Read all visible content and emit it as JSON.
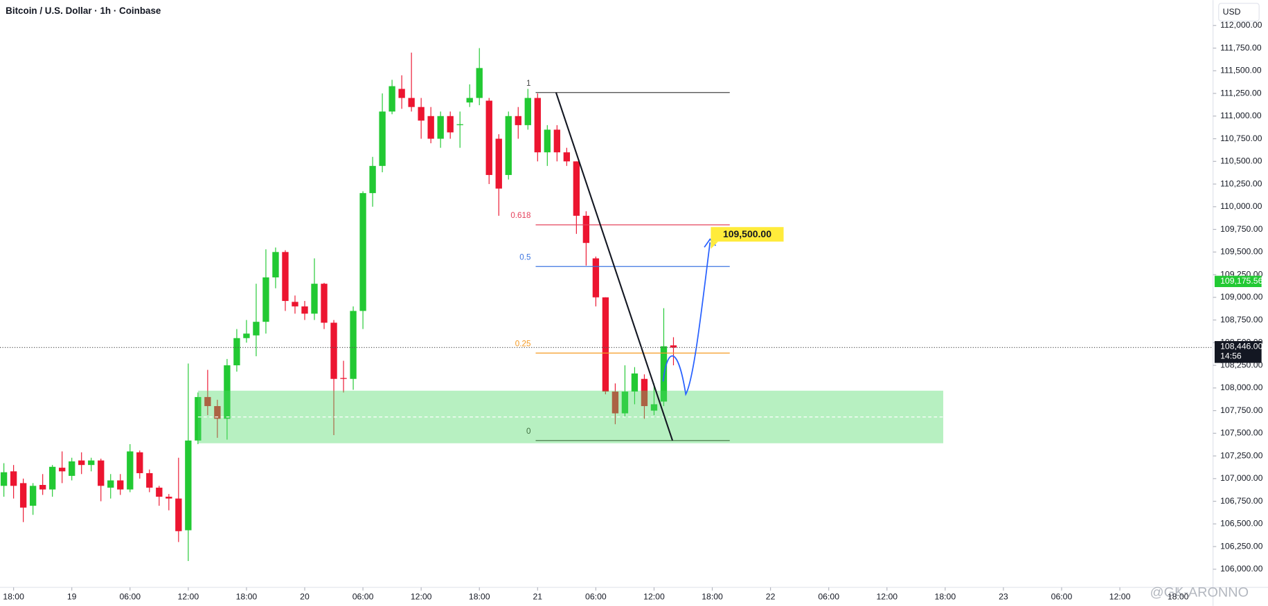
{
  "chart_data": {
    "type": "candlestick",
    "title": "Bitcoin / U.S. Dollar · 1h · Coinbase",
    "currency": "USD",
    "watermark": "@GK-ARONNO",
    "up_color": "#22c933",
    "down_color": "#ec1530",
    "x": [
      -1,
      0,
      1,
      2,
      3,
      4,
      5,
      6,
      7,
      8,
      9,
      10,
      11,
      12,
      13,
      14,
      15,
      16,
      17,
      18,
      19,
      20,
      21,
      22,
      23,
      24,
      25,
      26,
      27,
      28,
      29,
      30,
      31,
      32,
      33,
      34,
      35,
      36,
      37,
      38,
      39,
      40,
      41,
      42,
      43,
      44,
      45,
      46,
      47,
      48,
      49,
      50,
      51,
      52,
      53,
      54,
      55,
      56,
      57,
      58,
      59,
      60,
      61,
      62,
      63,
      64,
      65,
      66,
      67,
      68
    ],
    "open": [
      106920,
      107080,
      106950,
      106700,
      106930,
      106880,
      107120,
      107030,
      107200,
      107150,
      107200,
      106900,
      106980,
      106880,
      107290,
      107060,
      106900,
      106800,
      106780,
      106430,
      107420,
      107900,
      107800,
      107660,
      108250,
      108550,
      108580,
      108730,
      109220,
      109500,
      108950,
      108900,
      108820,
      109150,
      108720,
      108110,
      108100,
      108850,
      110150,
      110450,
      111050,
      111300,
      111200,
      111100,
      111000,
      110750,
      111000,
      110900,
      111150,
      111200,
      111170,
      110750,
      110350,
      111000,
      110900,
      111200,
      110600,
      110850,
      110600,
      110500,
      109900,
      109430,
      109000,
      107960,
      107720,
      107960,
      108100,
      107750,
      107850,
      108470
    ],
    "high": [
      107170,
      107150,
      107000,
      106950,
      107050,
      107150,
      107300,
      107230,
      107290,
      107230,
      107220,
      107050,
      107050,
      107380,
      107310,
      107100,
      106920,
      106830,
      107230,
      108270,
      107950,
      108200,
      107870,
      108320,
      108650,
      108750,
      109150,
      109530,
      109550,
      109520,
      109020,
      108960,
      109430,
      109160,
      108750,
      108300,
      108900,
      110170,
      110550,
      111250,
      111400,
      111450,
      111700,
      111200,
      111100,
      111050,
      111050,
      111050,
      111350,
      111750,
      111200,
      110800,
      111050,
      111100,
      111300,
      111250,
      110900,
      110900,
      110650,
      110500,
      109950,
      109450,
      109000,
      108050,
      108250,
      108230,
      108150,
      108050,
      108880,
      108560
    ],
    "low": [
      106800,
      106780,
      106520,
      106600,
      106820,
      106800,
      106950,
      106980,
      107050,
      107080,
      106750,
      106780,
      106820,
      106850,
      107000,
      106850,
      106700,
      106650,
      106300,
      106090,
      107380,
      107700,
      107450,
      107430,
      108180,
      108500,
      108350,
      108600,
      109100,
      108850,
      108820,
      108750,
      108750,
      108650,
      107480,
      107950,
      107980,
      108650,
      110000,
      110380,
      111020,
      111080,
      111050,
      110750,
      110700,
      110650,
      110750,
      110650,
      111100,
      111120,
      110250,
      109900,
      110300,
      110750,
      110850,
      110500,
      110450,
      110500,
      110450,
      109700,
      109350,
      108900,
      107930,
      107600,
      107680,
      107820,
      107660,
      107700,
      107800,
      108250
    ],
    "close": [
      107070,
      106920,
      106680,
      106920,
      106880,
      107130,
      107080,
      107190,
      107150,
      107200,
      106920,
      106980,
      106880,
      107300,
      107060,
      106900,
      106800,
      106780,
      106420,
      107420,
      107900,
      107800,
      107660,
      108250,
      108550,
      108600,
      108730,
      109220,
      109500,
      108960,
      108900,
      108820,
      109150,
      108720,
      108100,
      108100,
      108850,
      110150,
      110450,
      111050,
      111330,
      111200,
      111100,
      110950,
      110750,
      111000,
      110820,
      110910,
      111200,
      111530,
      110350,
      110200,
      111000,
      110900,
      111200,
      110600,
      110850,
      110600,
      110500,
      109900,
      109600,
      109000,
      107960,
      107720,
      107960,
      108160,
      107800,
      107820,
      108460,
      108446
    ],
    "xlim": [
      -1.4,
      123.6
    ],
    "ylim": [
      105800,
      112280
    ],
    "xticks": [
      {
        "value": 0,
        "label": "18:00"
      },
      {
        "value": 6,
        "label": "19"
      },
      {
        "value": 12,
        "label": "06:00"
      },
      {
        "value": 18,
        "label": "12:00"
      },
      {
        "value": 24,
        "label": "18:00"
      },
      {
        "value": 30,
        "label": "20"
      },
      {
        "value": 36,
        "label": "06:00"
      },
      {
        "value": 42,
        "label": "12:00"
      },
      {
        "value": 48,
        "label": "18:00"
      },
      {
        "value": 54,
        "label": "21"
      },
      {
        "value": 60,
        "label": "06:00"
      },
      {
        "value": 66,
        "label": "12:00"
      },
      {
        "value": 72,
        "label": "18:00"
      },
      {
        "value": 78,
        "label": "22"
      },
      {
        "value": 84,
        "label": "06:00"
      },
      {
        "value": 90,
        "label": "12:00"
      },
      {
        "value": 96,
        "label": "18:00"
      },
      {
        "value": 102,
        "label": "23"
      },
      {
        "value": 108,
        "label": "06:00"
      },
      {
        "value": 114,
        "label": "12:00"
      },
      {
        "value": 120,
        "label": "18:00"
      }
    ],
    "yticks": [
      {
        "value": 106000,
        "label": "106,000.00"
      },
      {
        "value": 106250,
        "label": "106,250.00"
      },
      {
        "value": 106500,
        "label": "106,500.00"
      },
      {
        "value": 106750,
        "label": "106,750.00"
      },
      {
        "value": 107000,
        "label": "107,000.00"
      },
      {
        "value": 107250,
        "label": "107,250.00"
      },
      {
        "value": 107500,
        "label": "107,500.00"
      },
      {
        "value": 107750,
        "label": "107,750.00"
      },
      {
        "value": 108000,
        "label": "108,000.00"
      },
      {
        "value": 108250,
        "label": "108,250.00"
      },
      {
        "value": 108500,
        "label": "108,500.00"
      },
      {
        "value": 108750,
        "label": "108,750.00"
      },
      {
        "value": 109000,
        "label": "109,000.00"
      },
      {
        "value": 109250,
        "label": "109,250.00"
      },
      {
        "value": 109500,
        "label": "109,500.00"
      },
      {
        "value": 109750,
        "label": "109,750.00"
      },
      {
        "value": 110000,
        "label": "110,000.00"
      },
      {
        "value": 110250,
        "label": "110,250.00"
      },
      {
        "value": 110500,
        "label": "110,500.00"
      },
      {
        "value": 110750,
        "label": "110,750.00"
      },
      {
        "value": 111000,
        "label": "111,000.00"
      },
      {
        "value": 111250,
        "label": "111,250.00"
      },
      {
        "value": 111500,
        "label": "111,500.00"
      },
      {
        "value": 111750,
        "label": "111,750.00"
      },
      {
        "value": 112000,
        "label": "112,000.00"
      }
    ],
    "last_price": {
      "value": 108446,
      "label": "108,446.00"
    },
    "countdown": "14:56",
    "marker_price": {
      "value": 109175.56,
      "label": "109,175.56"
    },
    "zone": {
      "x": [
        19,
        95.8
      ],
      "y": [
        107390,
        107970
      ]
    },
    "fib_x": [
      53.8,
      73.8
    ],
    "fib_levels": [
      {
        "label": "1",
        "value": 111260,
        "color": "#444444"
      },
      {
        "label": "0.618",
        "value": 109800,
        "color": "#e5405a"
      },
      {
        "label": "0.5",
        "value": 109340,
        "color": "#3d75e0"
      },
      {
        "label": "0.25",
        "value": 108385,
        "color": "#f59a23"
      },
      {
        "label": "0",
        "value": 107420,
        "color": "#3f6f3f"
      }
    ],
    "trendline": {
      "x": [
        55.9,
        67.9
      ],
      "y": [
        111260,
        107420
      ]
    },
    "target_label": "109,500.00"
  }
}
